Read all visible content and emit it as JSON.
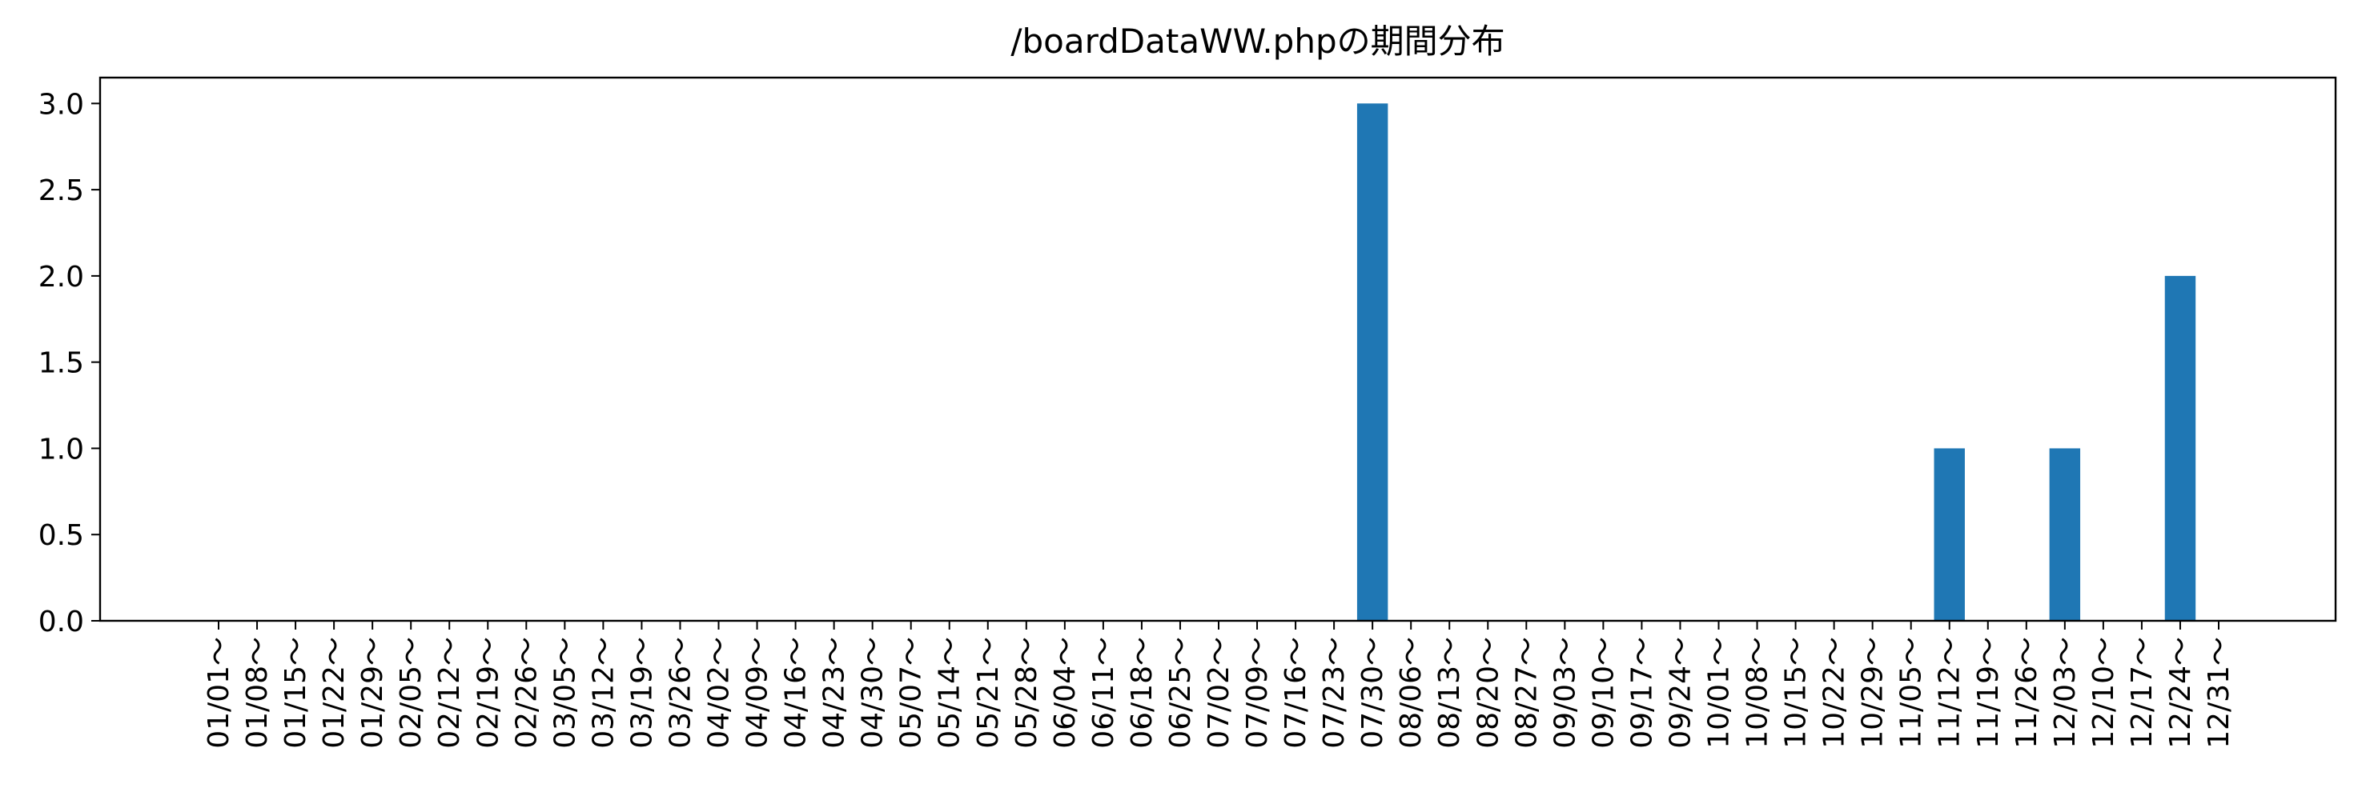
{
  "chart_data": {
    "type": "bar",
    "title": "/boardDataWW.phpの期間分布",
    "xlabel": "",
    "ylabel": "",
    "ylim": [
      0,
      3.15
    ],
    "yticks": [
      "0.0",
      "0.5",
      "1.0",
      "1.5",
      "2.0",
      "2.5",
      "3.0"
    ],
    "grid": false,
    "bar_color": "#1f77b4",
    "categories": [
      "01/01～",
      "01/08～",
      "01/15～",
      "01/22～",
      "01/29～",
      "02/05～",
      "02/12～",
      "02/19～",
      "02/26～",
      "03/05～",
      "03/12～",
      "03/19～",
      "03/26～",
      "04/02～",
      "04/09～",
      "04/16～",
      "04/23～",
      "04/30～",
      "05/07～",
      "05/14～",
      "05/21～",
      "05/28～",
      "06/04～",
      "06/11～",
      "06/18～",
      "06/25～",
      "07/02～",
      "07/09～",
      "07/16～",
      "07/23～",
      "07/30～",
      "08/06～",
      "08/13～",
      "08/20～",
      "08/27～",
      "09/03～",
      "09/10～",
      "09/17～",
      "09/24～",
      "10/01～",
      "10/08～",
      "10/15～",
      "10/22～",
      "10/29～",
      "11/05～",
      "11/12～",
      "11/19～",
      "11/26～",
      "12/03～",
      "12/10～",
      "12/17～",
      "12/24～",
      "12/31～"
    ],
    "values": [
      0,
      0,
      0,
      0,
      0,
      0,
      0,
      0,
      0,
      0,
      0,
      0,
      0,
      0,
      0,
      0,
      0,
      0,
      0,
      0,
      0,
      0,
      0,
      0,
      0,
      0,
      0,
      0,
      0,
      0,
      3,
      0,
      0,
      0,
      0,
      0,
      0,
      0,
      0,
      0,
      0,
      0,
      0,
      0,
      0,
      1,
      0,
      0,
      1,
      0,
      0,
      2,
      0
    ]
  }
}
